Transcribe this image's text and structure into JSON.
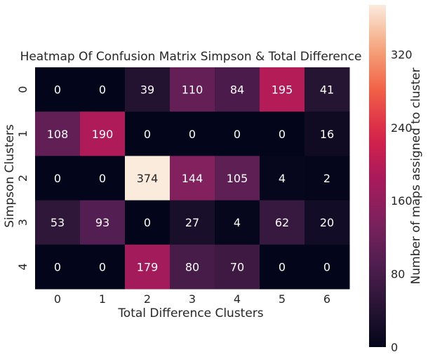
{
  "chart_data": {
    "type": "heatmap",
    "title": "Heatmap Of Confusion Matrix Simpson & Total Difference",
    "xlabel": "Total Difference Clusters",
    "ylabel": "Simpson Clusters",
    "x_categories": [
      "0",
      "1",
      "2",
      "3",
      "4",
      "5",
      "6"
    ],
    "y_categories": [
      "0",
      "1",
      "2",
      "3",
      "4"
    ],
    "values": [
      [
        0,
        0,
        39,
        110,
        84,
        195,
        41
      ],
      [
        108,
        190,
        0,
        0,
        0,
        0,
        16
      ],
      [
        0,
        0,
        374,
        144,
        105,
        4,
        2
      ],
      [
        53,
        93,
        0,
        27,
        4,
        62,
        20
      ],
      [
        0,
        0,
        179,
        80,
        70,
        0,
        0
      ]
    ],
    "colorbar": {
      "label": "Number of maps assigned to cluster",
      "min": 0,
      "max": 374,
      "ticks": [
        0,
        80,
        160,
        240,
        320
      ],
      "colormap": "rocket"
    },
    "grid": false
  }
}
